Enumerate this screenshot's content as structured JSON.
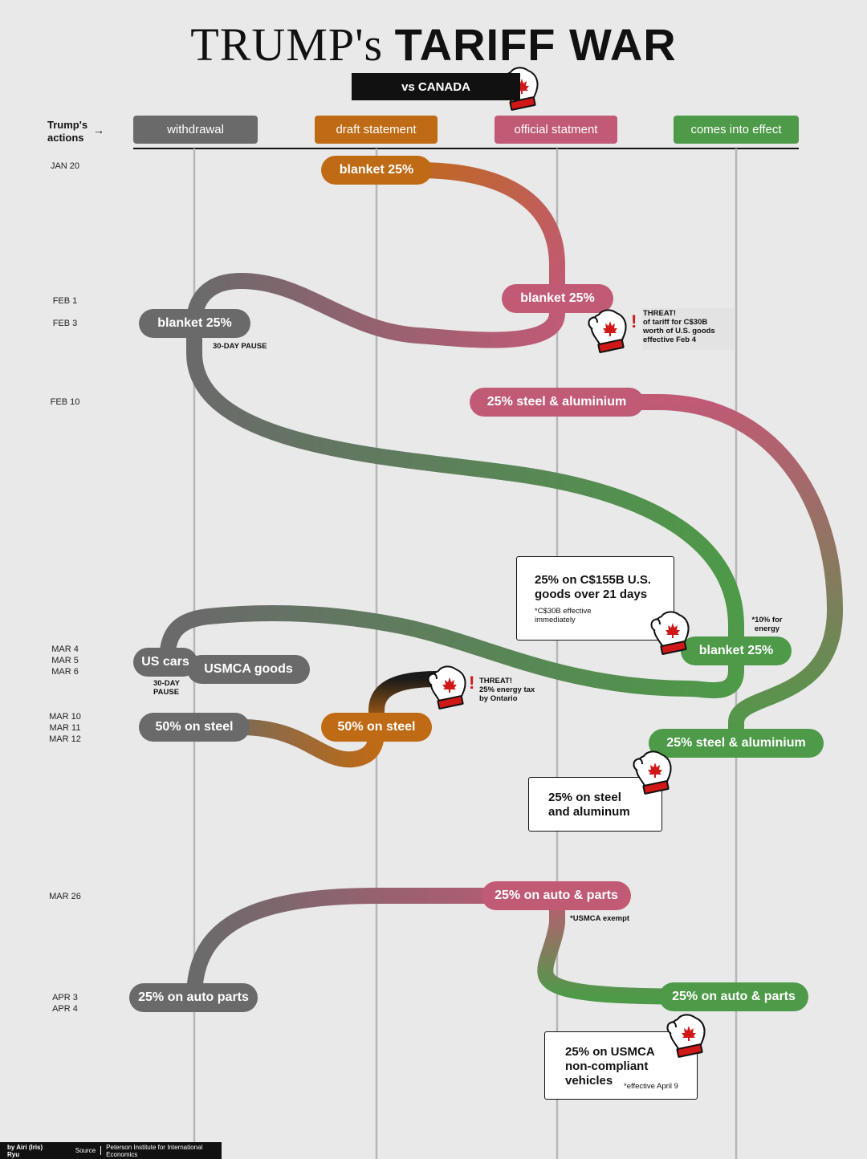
{
  "title": {
    "part1": "TRUMP's",
    "part2": "TARIFF WAR",
    "subtitle": "vs CANADA"
  },
  "actions_label": "Trump's actions",
  "columns": [
    {
      "label": "withdrawal",
      "color": "#6a6a6a"
    },
    {
      "label": "draft statement",
      "color": "#bf6a14"
    },
    {
      "label": "official statment",
      "color": "#c05a75"
    },
    {
      "label": "comes into effect",
      "color": "#4d9a48"
    }
  ],
  "dates": {
    "jan20": "JAN 20",
    "feb1": "FEB 1",
    "feb3": "FEB 3",
    "feb10": "FEB 10",
    "mar4": "MAR 4",
    "mar5": "MAR 5",
    "mar6": "MAR 6",
    "mar10": "MAR 10",
    "mar11": "MAR 11",
    "mar12": "MAR 12",
    "mar26": "MAR 26",
    "apr3": "APR 3",
    "apr4": "APR 4"
  },
  "events": {
    "jan20_draft": "blanket 25%",
    "feb1_official": "blanket 25%",
    "feb3_withdrawal": "blanket 25%",
    "feb10_official": "25% steel & aluminium",
    "mar4_effect": "blanket 25%",
    "mar5_withdrawal": "US cars",
    "mar6_withdrawal": "USMCA goods",
    "mar10_withdrawal": "50% on steel",
    "mar11_draft": "50% on steel",
    "mar12_effect": "25% steel & aluminium",
    "mar26_official": "25% on auto & parts",
    "apr3_effect": "25% on auto & parts",
    "apr4_withdrawal": "25% on auto parts"
  },
  "notes": {
    "pause1": "30-DAY PAUSE",
    "pause2": "30-DAY PAUSE",
    "energy": "*10% for energy",
    "usmca_exempt": "*USMCA exempt",
    "threat1": [
      "THREAT!",
      "of tariff for C$30B",
      "worth of U.S. goods",
      "effective Feb 4"
    ],
    "threat2": [
      "THREAT!",
      "25% energy tax",
      "by Ontario"
    ]
  },
  "canada": {
    "box1_title": "25% on C$155B U.S. goods over 21 days",
    "box1_note": "*C$30B effective immediately",
    "box2_title": "25% on steel and aluminum",
    "box3_title": "25% on USMCA non-compliant vehicles",
    "box3_note": "*effective April 9"
  },
  "footer": {
    "by": "by Airi (Iris) Ryu",
    "source_label": "Source",
    "source": "Peterson Institute for International Economics"
  },
  "colors": {
    "withdrawal": "#6a6a6a",
    "draft": "#bf6a14",
    "official": "#c05a75",
    "effect": "#4d9a48",
    "background": "#e9e9e9",
    "threat": "#d01818"
  },
  "icons": [
    "canada-mitten-icon",
    "arrow-right-icon",
    "exclamation-icon"
  ]
}
